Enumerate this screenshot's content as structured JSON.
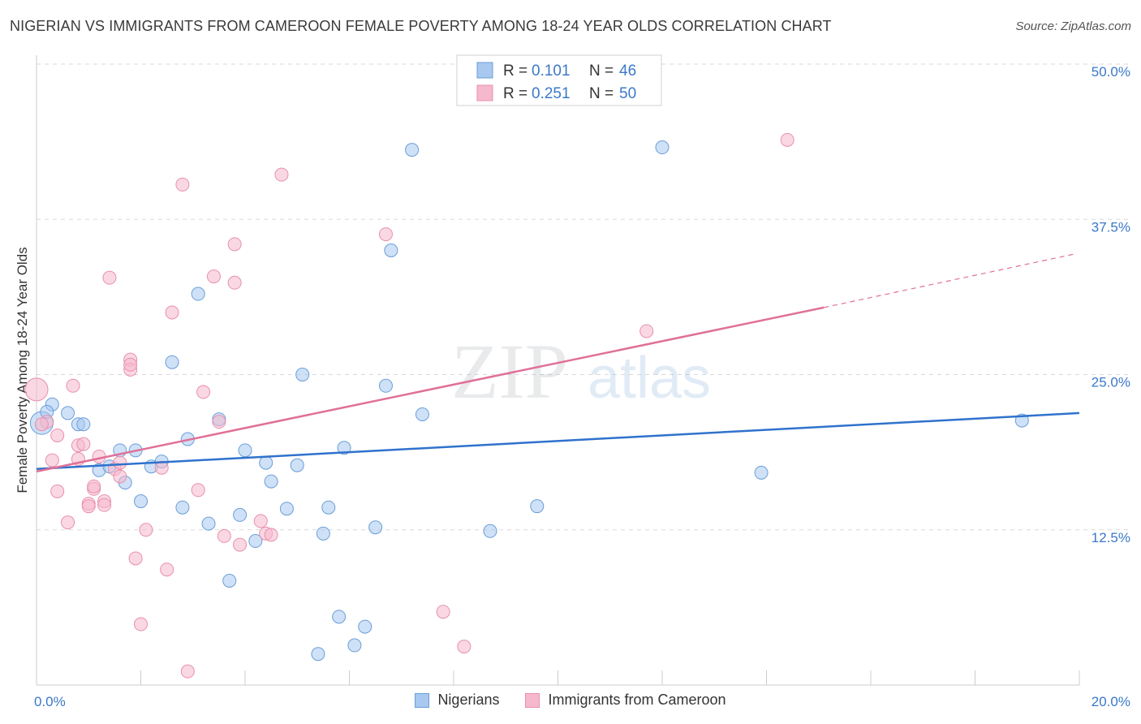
{
  "title": "NIGERIAN VS IMMIGRANTS FROM CAMEROON FEMALE POVERTY AMONG 18-24 YEAR OLDS CORRELATION CHART",
  "source": "Source: ZipAtlas.com",
  "watermark": {
    "zip": "ZIP",
    "atlas": "atlas"
  },
  "colors": {
    "blue_fill": "#a8c8f0",
    "blue_stroke": "#6a9ed8",
    "blue_line": "#2f72cc",
    "pink_fill": "#f6b8cc",
    "pink_stroke": "#e890ac",
    "pink_line": "#e07098",
    "tick_label": "#3b78c8",
    "grid": "#d9d9d9"
  },
  "legend_top": [
    {
      "r_label": "R = ",
      "r_value": "0.101",
      "n_label": "N = ",
      "n_value": "46"
    },
    {
      "r_label": "R = ",
      "r_value": "0.251",
      "n_label": "N = ",
      "n_value": "50"
    }
  ],
  "chart_data": {
    "type": "scatter",
    "xlabel": "",
    "ylabel": "Female Poverty Among 18-24 Year Olds",
    "xlim": [
      0,
      20
    ],
    "ylim": [
      0,
      50
    ],
    "x_tick_labels": [
      {
        "value": 0,
        "label": "0.0%"
      },
      {
        "value": 20,
        "label": "20.0%"
      }
    ],
    "y_tick_labels": [
      {
        "value": 12.5,
        "label": "12.5%"
      },
      {
        "value": 25,
        "label": "25.0%"
      },
      {
        "value": 37.5,
        "label": "37.5%"
      },
      {
        "value": 50,
        "label": "50.0%"
      }
    ],
    "grid": true,
    "legend_position": "top-center",
    "series": [
      {
        "name": "Nigerians",
        "r": 0.101,
        "n": 46,
        "trend": {
          "x": [
            0,
            20
          ],
          "y": [
            17.4,
            21.9
          ]
        },
        "points": [
          [
            0.1,
            21.1
          ],
          [
            0.3,
            22.6
          ],
          [
            0.6,
            21.9
          ],
          [
            0.8,
            21.0
          ],
          [
            0.9,
            21.0
          ],
          [
            1.2,
            17.3
          ],
          [
            1.4,
            17.6
          ],
          [
            1.6,
            18.9
          ],
          [
            1.7,
            16.3
          ],
          [
            1.9,
            18.9
          ],
          [
            2.0,
            14.8
          ],
          [
            2.2,
            17.6
          ],
          [
            2.4,
            18.0
          ],
          [
            2.6,
            26.0
          ],
          [
            2.8,
            14.3
          ],
          [
            2.9,
            19.8
          ],
          [
            3.1,
            31.5
          ],
          [
            3.3,
            13.0
          ],
          [
            3.5,
            21.4
          ],
          [
            3.7,
            8.4
          ],
          [
            3.9,
            13.7
          ],
          [
            4.0,
            18.9
          ],
          [
            4.2,
            11.6
          ],
          [
            4.4,
            17.9
          ],
          [
            4.5,
            16.4
          ],
          [
            4.8,
            14.2
          ],
          [
            5.0,
            17.7
          ],
          [
            5.1,
            25.0
          ],
          [
            5.4,
            2.5
          ],
          [
            5.5,
            12.2
          ],
          [
            5.6,
            14.3
          ],
          [
            5.8,
            5.5
          ],
          [
            5.9,
            19.1
          ],
          [
            6.1,
            3.2
          ],
          [
            6.3,
            4.7
          ],
          [
            6.5,
            12.7
          ],
          [
            6.7,
            24.1
          ],
          [
            6.8,
            35.0
          ],
          [
            7.2,
            43.1
          ],
          [
            7.4,
            21.8
          ],
          [
            8.7,
            12.4
          ],
          [
            9.6,
            14.4
          ],
          [
            12.0,
            43.3
          ],
          [
            13.9,
            17.1
          ],
          [
            18.9,
            21.3
          ],
          [
            0.2,
            22.0
          ]
        ]
      },
      {
        "name": "Immigrants from Cameroon",
        "r": 0.251,
        "n": 50,
        "trend": {
          "x": [
            0,
            15.1
          ],
          "y": [
            17.2,
            30.4
          ]
        },
        "trend_dashed": {
          "x": [
            15.1,
            19.9
          ],
          "y": [
            30.4,
            34.7
          ]
        },
        "points": [
          [
            0.0,
            23.8
          ],
          [
            0.2,
            21.2
          ],
          [
            0.3,
            18.1
          ],
          [
            0.4,
            20.1
          ],
          [
            0.4,
            15.6
          ],
          [
            0.6,
            13.1
          ],
          [
            0.7,
            24.1
          ],
          [
            0.8,
            19.3
          ],
          [
            0.8,
            18.2
          ],
          [
            0.9,
            19.4
          ],
          [
            1.0,
            14.6
          ],
          [
            1.0,
            14.4
          ],
          [
            1.1,
            15.8
          ],
          [
            1.1,
            16.0
          ],
          [
            1.2,
            18.4
          ],
          [
            1.3,
            14.8
          ],
          [
            1.3,
            14.5
          ],
          [
            1.4,
            32.8
          ],
          [
            1.5,
            17.4
          ],
          [
            1.6,
            17.9
          ],
          [
            1.6,
            16.8
          ],
          [
            1.8,
            26.2
          ],
          [
            1.8,
            25.4
          ],
          [
            1.8,
            25.8
          ],
          [
            1.9,
            10.2
          ],
          [
            2.0,
            4.9
          ],
          [
            2.1,
            12.5
          ],
          [
            2.4,
            17.5
          ],
          [
            2.5,
            9.3
          ],
          [
            2.6,
            30.0
          ],
          [
            2.8,
            40.3
          ],
          [
            2.9,
            1.1
          ],
          [
            3.2,
            23.6
          ],
          [
            3.1,
            15.7
          ],
          [
            3.4,
            32.9
          ],
          [
            3.5,
            21.2
          ],
          [
            3.6,
            12.0
          ],
          [
            3.8,
            35.5
          ],
          [
            3.8,
            32.4
          ],
          [
            3.9,
            11.3
          ],
          [
            4.3,
            13.2
          ],
          [
            4.4,
            12.2
          ],
          [
            4.5,
            12.1
          ],
          [
            4.7,
            41.1
          ],
          [
            6.7,
            36.3
          ],
          [
            7.8,
            5.9
          ],
          [
            8.2,
            3.1
          ],
          [
            11.7,
            28.5
          ],
          [
            14.4,
            43.9
          ],
          [
            0.1,
            21.0
          ]
        ]
      }
    ]
  }
}
